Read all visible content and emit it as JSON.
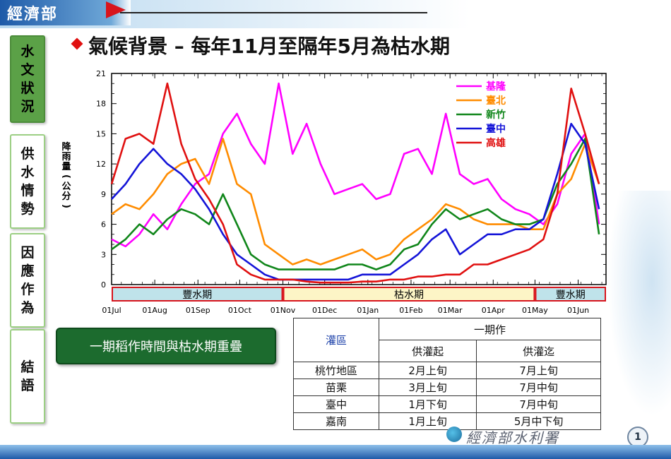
{
  "header": {
    "logo": "經濟部"
  },
  "sidebar": {
    "tabs": [
      {
        "label": "水文狀況",
        "active": true
      },
      {
        "label": "供水情勢",
        "active": false
      },
      {
        "label": "因應作為",
        "active": false
      },
      {
        "label": "結語",
        "active": false
      }
    ]
  },
  "title": "氣候背景 – 每年11月至隔年5月為枯水期",
  "callout": "一期稻作時間與枯水期重疊",
  "table": {
    "header_area": "灌區",
    "header_group": "一期作",
    "header_start": "供灌起",
    "header_end": "供灌迄",
    "rows": [
      {
        "area": "桃竹地區",
        "start": "2月上旬",
        "end": "7月上旬"
      },
      {
        "area": "苗栗",
        "start": "3月上旬",
        "end": "7月中旬"
      },
      {
        "area": "臺中",
        "start": "1月下旬",
        "end": "7月中旬"
      },
      {
        "area": "嘉南",
        "start": "1月上旬",
        "end": "5月中下旬"
      }
    ]
  },
  "footer": {
    "org": "經濟部水利署",
    "page": "1"
  },
  "colors": {
    "accent_green": "#5ba147",
    "title_diamond": "#e01010",
    "wet_season": "#bfe3ea",
    "dry_season": "#fdf5c6",
    "season_border": "#d8141c"
  },
  "chart_data": {
    "type": "line",
    "ylabel": "降雨量(公分)",
    "ylim": [
      0,
      21
    ],
    "yticks": [
      0,
      3,
      6,
      9,
      12,
      15,
      18,
      21
    ],
    "xlim": [
      0,
      355
    ],
    "xticks": [
      {
        "label": "01Jul",
        "day": 0
      },
      {
        "label": "01Aug",
        "day": 31
      },
      {
        "label": "01Sep",
        "day": 62
      },
      {
        "label": "01Oct",
        "day": 92
      },
      {
        "label": "01Nov",
        "day": 123
      },
      {
        "label": "01Dec",
        "day": 153
      },
      {
        "label": "01Jan",
        "day": 184
      },
      {
        "label": "01Feb",
        "day": 215
      },
      {
        "label": "01Mar",
        "day": 243
      },
      {
        "label": "01Apr",
        "day": 274
      },
      {
        "label": "01May",
        "day": 304
      },
      {
        "label": "01Jun",
        "day": 335
      }
    ],
    "legend_position": "top-right",
    "seasons": [
      {
        "label": "豐水期",
        "start": 0,
        "end": 123,
        "type": "wet"
      },
      {
        "label": "枯水期",
        "start": 123,
        "end": 304,
        "type": "dry"
      },
      {
        "label": "豐水期",
        "start": 304,
        "end": 355,
        "type": "wet"
      }
    ],
    "x": [
      0,
      10,
      20,
      30,
      40,
      50,
      60,
      70,
      80,
      90,
      100,
      110,
      120,
      130,
      140,
      150,
      160,
      170,
      180,
      190,
      200,
      210,
      220,
      230,
      240,
      250,
      260,
      270,
      280,
      290,
      300,
      310,
      320,
      330,
      340,
      350
    ],
    "series": [
      {
        "name": "基隆",
        "color": "#ff00ff",
        "values": [
          4.5,
          3.8,
          5.0,
          7.0,
          5.5,
          8.0,
          10.0,
          11.0,
          15.0,
          17.0,
          14.0,
          12.0,
          20.0,
          13.0,
          16.0,
          12.0,
          9.0,
          9.5,
          10.0,
          8.5,
          9.0,
          13.0,
          13.5,
          11.0,
          17.0,
          11.0,
          10.0,
          10.5,
          8.5,
          7.5,
          7.0,
          6.0,
          8.0,
          13.0,
          15.0,
          6.0
        ]
      },
      {
        "name": "臺北",
        "color": "#ff8c00",
        "values": [
          7.0,
          8.0,
          7.5,
          9.0,
          11.0,
          12.0,
          12.5,
          10.0,
          14.5,
          10.0,
          9.0,
          4.0,
          3.0,
          2.0,
          2.5,
          2.0,
          2.5,
          3.0,
          3.5,
          2.5,
          3.0,
          4.5,
          5.5,
          6.5,
          8.0,
          7.5,
          6.5,
          6.0,
          6.0,
          6.0,
          5.5,
          5.5,
          9.0,
          10.5,
          14.0,
          10.0
        ]
      },
      {
        "name": "新竹",
        "color": "#10861a",
        "values": [
          3.5,
          4.5,
          6.0,
          5.0,
          6.5,
          7.5,
          7.0,
          6.0,
          9.0,
          6.0,
          3.0,
          2.0,
          1.5,
          1.5,
          1.5,
          1.5,
          1.5,
          2.0,
          2.0,
          1.5,
          2.0,
          3.5,
          4.0,
          6.0,
          7.5,
          6.5,
          7.0,
          7.5,
          6.5,
          6.0,
          6.0,
          6.5,
          10.0,
          12.0,
          14.5,
          5.0
        ]
      },
      {
        "name": "臺中",
        "color": "#1414d8",
        "values": [
          8.5,
          10.0,
          12.0,
          13.5,
          12.0,
          11.0,
          9.5,
          7.5,
          5.0,
          3.0,
          2.0,
          1.0,
          0.5,
          0.5,
          0.5,
          0.5,
          0.5,
          0.5,
          1.0,
          1.0,
          1.0,
          2.0,
          3.0,
          4.5,
          5.5,
          3.0,
          4.0,
          5.0,
          5.0,
          5.5,
          5.5,
          6.5,
          11.0,
          16.0,
          14.0,
          7.5
        ]
      },
      {
        "name": "高雄",
        "color": "#e01010",
        "values": [
          10.0,
          14.5,
          15.0,
          14.0,
          20.0,
          14.0,
          10.5,
          8.5,
          6.0,
          2.0,
          1.0,
          0.5,
          0.5,
          0.5,
          0.3,
          0.2,
          0.2,
          0.2,
          0.3,
          0.3,
          0.5,
          0.5,
          0.8,
          0.8,
          1.0,
          1.0,
          2.0,
          2.0,
          2.5,
          3.0,
          3.5,
          4.5,
          9.0,
          19.5,
          15.0,
          10.0
        ]
      }
    ]
  }
}
